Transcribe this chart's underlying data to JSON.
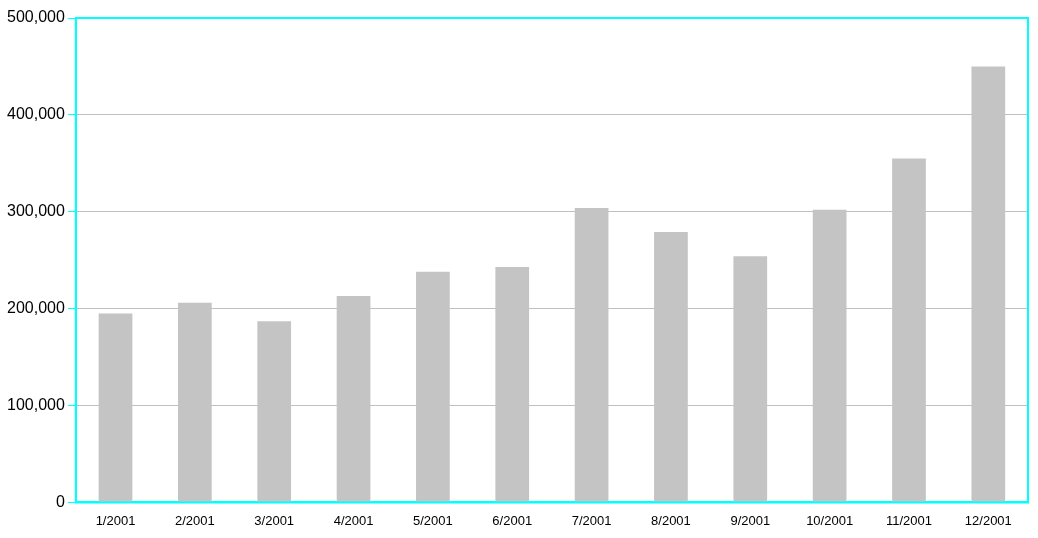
{
  "chart_data": {
    "type": "bar",
    "categories": [
      "1/2001",
      "2/2001",
      "3/2001",
      "4/2001",
      "5/2001",
      "6/2001",
      "7/2001",
      "8/2001",
      "9/2001",
      "10/2001",
      "11/2001",
      "12/2001"
    ],
    "values": [
      195000,
      206000,
      187000,
      213000,
      238000,
      243000,
      304000,
      279000,
      254000,
      302000,
      355000,
      450000
    ],
    "color": "#c4c4c4",
    "ylim": [
      0,
      500000
    ],
    "yticks": [
      0,
      {
        "value": 100000,
        "label": "100,000"
      },
      {
        "value": 200000,
        "label": "200,000"
      },
      {
        "value": 300000,
        "label": "300,000"
      },
      {
        "value": 400000,
        "label": "400,000"
      },
      {
        "value": 500000,
        "label": "500,000"
      }
    ],
    "grid": "y"
  }
}
